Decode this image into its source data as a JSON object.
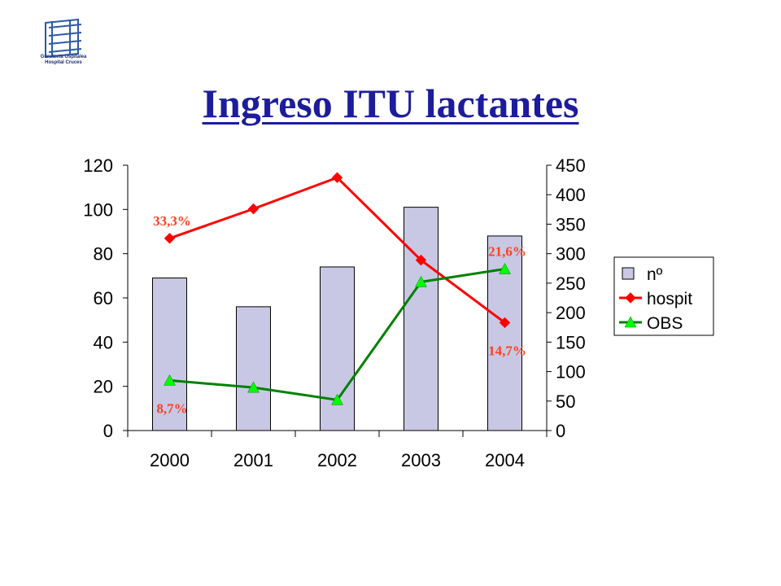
{
  "logo": {
    "icon": "hospital-logo",
    "lines": [
      "Gurutzeta Ospitalea",
      "Hospital Cruces"
    ]
  },
  "title": "Ingreso ITU lactantes",
  "chart_data": {
    "type": "bar",
    "categories": [
      "2000",
      "2001",
      "2002",
      "2003",
      "2004"
    ],
    "series": [
      {
        "name": "nº",
        "kind": "bar",
        "axis": "left",
        "color": "#c8c8e4",
        "values": [
          69,
          56,
          74,
          101,
          88
        ]
      },
      {
        "name": "hospit",
        "kind": "line",
        "marker": "diamond",
        "axis": "right",
        "color": "#ff0000",
        "values": [
          326,
          376,
          429,
          289,
          183
        ]
      },
      {
        "name": "OBS",
        "kind": "line",
        "marker": "triangle",
        "axis": "right",
        "color": "#008000",
        "values": [
          85,
          73,
          52,
          252,
          274
        ]
      }
    ],
    "left_axis": {
      "ylim": [
        0,
        120
      ],
      "ticks": [
        0,
        20,
        40,
        60,
        80,
        100,
        120
      ]
    },
    "right_axis": {
      "ylim": [
        0,
        450
      ],
      "ticks": [
        0,
        50,
        100,
        150,
        200,
        250,
        300,
        350,
        400,
        450
      ]
    },
    "legend": {
      "placement": "right",
      "entries": [
        "nº",
        "hospit",
        "OBS"
      ]
    },
    "annotations": [
      {
        "text": "33,3%",
        "series": "hospit",
        "category": "2000",
        "position": "above"
      },
      {
        "text": "8,7%",
        "series": "OBS",
        "category": "2000",
        "position": "below"
      },
      {
        "text": "21,6%",
        "series": "OBS",
        "category": "2004",
        "position": "above"
      },
      {
        "text": "14,7%",
        "series": "hospit",
        "category": "2004",
        "position": "below"
      }
    ],
    "grid": false
  }
}
